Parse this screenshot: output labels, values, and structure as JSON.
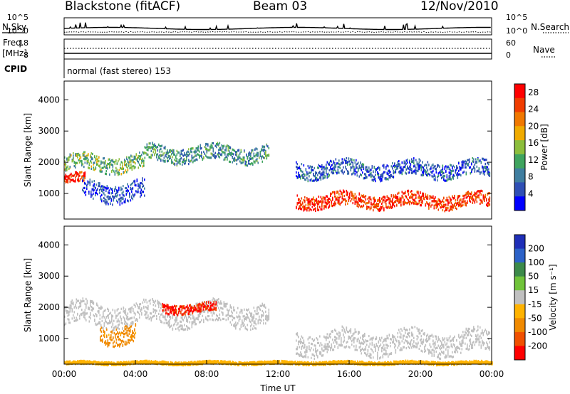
{
  "header": {
    "radar": "Blackstone (fitACF)",
    "beam": "Beam 03",
    "date": "12/Nov/2010"
  },
  "labels": {
    "nsky": "N.Sky",
    "nsearch": "N.Search",
    "freq": "Freq.",
    "freq_unit": "[MHz]",
    "nave": "Nave",
    "cpid": "CPID",
    "cpid_value": "normal (fast stereo) 153",
    "ylabel": "Slant Range [km]",
    "xlabel": "Time UT"
  },
  "strip_ticks": {
    "noise_left": [
      "10^5",
      "10^0"
    ],
    "noise_right": [
      "10^5",
      "10^0"
    ],
    "freq_left": [
      "18",
      "8"
    ],
    "freq_right": [
      "60",
      "0"
    ]
  },
  "colors": {
    "power_scale": [
      "#0000ff",
      "#2f4fb5",
      "#3f7ea0",
      "#3fa45f",
      "#8cbe3c",
      "#f0ab00",
      "#f07800",
      "#f03c00",
      "#ff0000"
    ],
    "velocity_scale": [
      "#1f2fb8",
      "#2c62c8",
      "#3c8a4a",
      "#70c33a",
      "#c0c0c0",
      "#ffb300",
      "#f08a00",
      "#f05000",
      "#ff0000"
    ]
  },
  "chart_data": [
    {
      "type": "heatmap",
      "panel": "power",
      "xlabel": "Time UT",
      "ylabel": "Slant Range [km]",
      "xlim": [
        "00:00",
        "24:00"
      ],
      "ylim": [
        180,
        4600
      ],
      "y_ticks": [
        1000,
        2000,
        3000,
        4000
      ],
      "colorbar": {
        "label": "Power [dB]",
        "ticks": [
          4,
          8,
          12,
          16,
          20,
          24,
          28
        ],
        "range": [
          0,
          30
        ]
      },
      "echo_regions": [
        {
          "t_start": 0.0,
          "t_end": 1.2,
          "range_center": 1500,
          "range_width": 300,
          "value": 26
        },
        {
          "t_start": 0.0,
          "t_end": 4.5,
          "range_center": 2000,
          "range_width": 500,
          "value": 13
        },
        {
          "t_start": 1.0,
          "t_end": 4.5,
          "range_center": 1100,
          "range_width": 600,
          "value": 5
        },
        {
          "t_start": 4.5,
          "t_end": 11.5,
          "range_center": 2300,
          "range_width": 500,
          "value": 10
        },
        {
          "t_start": 13.0,
          "t_end": 23.9,
          "range_center": 800,
          "range_width": 450,
          "value": 26
        },
        {
          "t_start": 13.0,
          "t_end": 23.9,
          "range_center": 1800,
          "range_width": 500,
          "value": 6
        }
      ]
    },
    {
      "type": "heatmap",
      "panel": "velocity",
      "xlabel": "Time UT",
      "ylabel": "Slant Range [km]",
      "xlim": [
        "00:00",
        "24:00"
      ],
      "ylim": [
        180,
        4600
      ],
      "y_ticks": [
        1000,
        2000,
        3000,
        4000
      ],
      "x_ticks": [
        "00:00",
        "04:00",
        "08:00",
        "12:00",
        "16:00",
        "20:00",
        "00:00"
      ],
      "colorbar": {
        "label": "Velocity [m s⁻¹]",
        "ticks": [
          200,
          100,
          50,
          15,
          -15,
          -50,
          -100,
          -200
        ],
        "range": [
          -250,
          250
        ]
      },
      "echo_regions": [
        {
          "t_start": 0.0,
          "t_end": 11.5,
          "range_center": 1800,
          "range_width": 700,
          "value": 0
        },
        {
          "t_start": 2.0,
          "t_end": 4.0,
          "range_center": 1200,
          "range_width": 600,
          "value": -100
        },
        {
          "t_start": 5.5,
          "t_end": 8.5,
          "range_center": 2000,
          "range_width": 300,
          "value": -200
        },
        {
          "t_start": 13.0,
          "t_end": 23.9,
          "range_center": 900,
          "range_width": 700,
          "value": 0
        },
        {
          "t_start": 0.0,
          "t_end": 24.0,
          "range_center": 250,
          "range_width": 100,
          "value": -50
        }
      ]
    }
  ]
}
